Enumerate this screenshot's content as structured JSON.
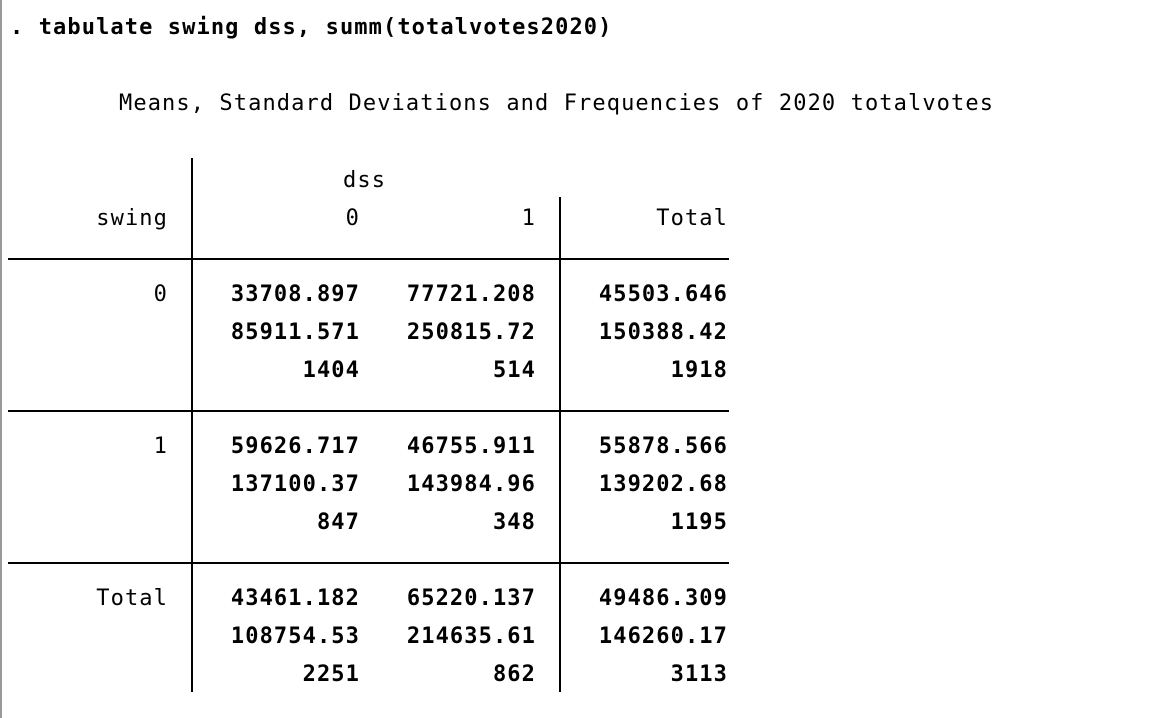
{
  "command": ". tabulate swing dss, summ(totalvotes2020)",
  "title": "Means, Standard Deviations and Frequencies of 2020 totalvotes",
  "table": {
    "row_var": "swing",
    "col_var": "dss",
    "col_headers": [
      "0",
      "1",
      "Total"
    ],
    "rows": [
      {
        "label": "0",
        "cells": [
          {
            "mean": "33708.897",
            "sd": "85911.571",
            "freq": "1404"
          },
          {
            "mean": "77721.208",
            "sd": "250815.72",
            "freq": "514"
          },
          {
            "mean": "45503.646",
            "sd": "150388.42",
            "freq": "1918"
          }
        ]
      },
      {
        "label": "1",
        "cells": [
          {
            "mean": "59626.717",
            "sd": "137100.37",
            "freq": "847"
          },
          {
            "mean": "46755.911",
            "sd": "143984.96",
            "freq": "348"
          },
          {
            "mean": "55878.566",
            "sd": "139202.68",
            "freq": "1195"
          }
        ]
      },
      {
        "label": "Total",
        "cells": [
          {
            "mean": "43461.182",
            "sd": "108754.53",
            "freq": "2251"
          },
          {
            "mean": "65220.137",
            "sd": "214635.61",
            "freq": "862"
          },
          {
            "mean": "49486.309",
            "sd": "146260.17",
            "freq": "3113"
          }
        ]
      }
    ]
  }
}
